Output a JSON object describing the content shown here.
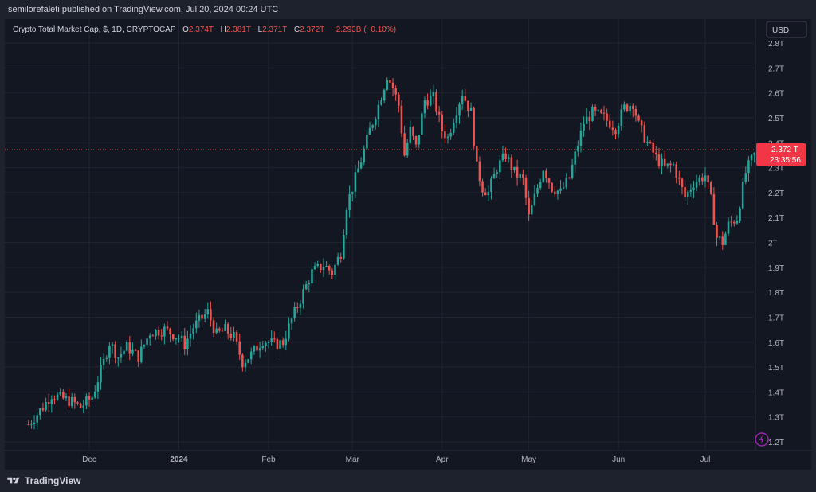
{
  "header": {
    "published": "semilorefaleti published on TradingView.com, Jul 20, 2024 00:24 UTC"
  },
  "legend": {
    "name": "Crypto Total Market Cap, $, 1D, CRYPTOCAP",
    "o_label": "O",
    "o_value": "2.374T",
    "h_label": "H",
    "h_value": "2.381T",
    "l_label": "L",
    "l_value": "2.371T",
    "c_label": "C",
    "c_value": "2.372T",
    "change": "−2.293B (−0.10%)"
  },
  "currency_button": "USD",
  "price_tag": {
    "price": "2.372 T",
    "countdown": "23:35:56"
  },
  "footer": {
    "brand": "TradingView"
  },
  "colors": {
    "up": "#26a69a",
    "down": "#ef5350",
    "bg": "#131722",
    "grid": "#1f2430",
    "text": "#d1d4dc"
  },
  "chart_data": {
    "type": "candlestick",
    "title": "Crypto Total Market Cap, $, 1D, CRYPTOCAP",
    "xlabel": "",
    "ylabel": "",
    "y_unit": "T",
    "y_ticks": [
      "1.2T",
      "1.3T",
      "1.4T",
      "1.5T",
      "1.6T",
      "1.7T",
      "1.8T",
      "1.9T",
      "2T",
      "2.1T",
      "2.2T",
      "2.3T",
      "2.4T",
      "2.5T",
      "2.6T",
      "2.7T",
      "2.8T"
    ],
    "y_tick_values": [
      1.2,
      1.3,
      1.4,
      1.5,
      1.6,
      1.7,
      1.8,
      1.9,
      2.0,
      2.1,
      2.2,
      2.3,
      2.4,
      2.5,
      2.6,
      2.7,
      2.8
    ],
    "x_ticks": [
      {
        "date": "2023-12-01",
        "label": "Dec",
        "bold": false
      },
      {
        "date": "2024-01-01",
        "label": "2024",
        "bold": true
      },
      {
        "date": "2024-02-01",
        "label": "Feb",
        "bold": false
      },
      {
        "date": "2024-03-01",
        "label": "Mar",
        "bold": false
      },
      {
        "date": "2024-04-01",
        "label": "Apr",
        "bold": false
      },
      {
        "date": "2024-05-01",
        "label": "May",
        "bold": false
      },
      {
        "date": "2024-06-01",
        "label": "Jun",
        "bold": false
      },
      {
        "date": "2024-07-01",
        "label": "Jul",
        "bold": false
      }
    ],
    "ylim": [
      1.2,
      2.8
    ],
    "last_price": 2.372,
    "close_trajectory": [
      {
        "date": "2023-11-10",
        "close": 1.27
      },
      {
        "date": "2023-11-15",
        "close": 1.34
      },
      {
        "date": "2023-11-18",
        "close": 1.39
      },
      {
        "date": "2023-11-25",
        "close": 1.36
      },
      {
        "date": "2023-11-28",
        "close": 1.34
      },
      {
        "date": "2023-12-02",
        "close": 1.38
      },
      {
        "date": "2023-12-06",
        "close": 1.52
      },
      {
        "date": "2023-12-08",
        "close": 1.6
      },
      {
        "date": "2023-12-11",
        "close": 1.54
      },
      {
        "date": "2023-12-14",
        "close": 1.58
      },
      {
        "date": "2023-12-18",
        "close": 1.54
      },
      {
        "date": "2023-12-22",
        "close": 1.64
      },
      {
        "date": "2023-12-27",
        "close": 1.65
      },
      {
        "date": "2024-01-01",
        "close": 1.62
      },
      {
        "date": "2024-01-03",
        "close": 1.59
      },
      {
        "date": "2024-01-06",
        "close": 1.66
      },
      {
        "date": "2024-01-11",
        "close": 1.72
      },
      {
        "date": "2024-01-14",
        "close": 1.63
      },
      {
        "date": "2024-01-17",
        "close": 1.65
      },
      {
        "date": "2024-01-20",
        "close": 1.62
      },
      {
        "date": "2024-01-23",
        "close": 1.52
      },
      {
        "date": "2024-01-26",
        "close": 1.55
      },
      {
        "date": "2024-01-30",
        "close": 1.61
      },
      {
        "date": "2024-02-03",
        "close": 1.59
      },
      {
        "date": "2024-02-06",
        "close": 1.6
      },
      {
        "date": "2024-02-09",
        "close": 1.69
      },
      {
        "date": "2024-02-13",
        "close": 1.8
      },
      {
        "date": "2024-02-16",
        "close": 1.88
      },
      {
        "date": "2024-02-20",
        "close": 1.91
      },
      {
        "date": "2024-02-23",
        "close": 1.88
      },
      {
        "date": "2024-02-26",
        "close": 1.96
      },
      {
        "date": "2024-02-28",
        "close": 2.15
      },
      {
        "date": "2024-03-01",
        "close": 2.22
      },
      {
        "date": "2024-03-04",
        "close": 2.33
      },
      {
        "date": "2024-03-07",
        "close": 2.45
      },
      {
        "date": "2024-03-10",
        "close": 2.55
      },
      {
        "date": "2024-03-13",
        "close": 2.67
      },
      {
        "date": "2024-03-15",
        "close": 2.62
      },
      {
        "date": "2024-03-17",
        "close": 2.55
      },
      {
        "date": "2024-03-19",
        "close": 2.35
      },
      {
        "date": "2024-03-21",
        "close": 2.45
      },
      {
        "date": "2024-03-23",
        "close": 2.38
      },
      {
        "date": "2024-03-26",
        "close": 2.57
      },
      {
        "date": "2024-03-29",
        "close": 2.58
      },
      {
        "date": "2024-04-01",
        "close": 2.45
      },
      {
        "date": "2024-04-03",
        "close": 2.42
      },
      {
        "date": "2024-04-05",
        "close": 2.5
      },
      {
        "date": "2024-04-08",
        "close": 2.6
      },
      {
        "date": "2024-04-11",
        "close": 2.52
      },
      {
        "date": "2024-04-13",
        "close": 2.3
      },
      {
        "date": "2024-04-15",
        "close": 2.22
      },
      {
        "date": "2024-04-17",
        "close": 2.2
      },
      {
        "date": "2024-04-20",
        "close": 2.3
      },
      {
        "date": "2024-04-23",
        "close": 2.35
      },
      {
        "date": "2024-04-26",
        "close": 2.28
      },
      {
        "date": "2024-04-29",
        "close": 2.25
      },
      {
        "date": "2024-05-01",
        "close": 2.1
      },
      {
        "date": "2024-05-03",
        "close": 2.18
      },
      {
        "date": "2024-05-06",
        "close": 2.3
      },
      {
        "date": "2024-05-09",
        "close": 2.22
      },
      {
        "date": "2024-05-12",
        "close": 2.2
      },
      {
        "date": "2024-05-15",
        "close": 2.26
      },
      {
        "date": "2024-05-17",
        "close": 2.35
      },
      {
        "date": "2024-05-20",
        "close": 2.48
      },
      {
        "date": "2024-05-23",
        "close": 2.52
      },
      {
        "date": "2024-05-27",
        "close": 2.5
      },
      {
        "date": "2024-05-31",
        "close": 2.46
      },
      {
        "date": "2024-06-03",
        "close": 2.54
      },
      {
        "date": "2024-06-06",
        "close": 2.56
      },
      {
        "date": "2024-06-08",
        "close": 2.47
      },
      {
        "date": "2024-06-11",
        "close": 2.4
      },
      {
        "date": "2024-06-14",
        "close": 2.34
      },
      {
        "date": "2024-06-17",
        "close": 2.3
      },
      {
        "date": "2024-06-20",
        "close": 2.31
      },
      {
        "date": "2024-06-24",
        "close": 2.18
      },
      {
        "date": "2024-06-27",
        "close": 2.24
      },
      {
        "date": "2024-07-01",
        "close": 2.27
      },
      {
        "date": "2024-07-03",
        "close": 2.17
      },
      {
        "date": "2024-07-05",
        "close": 2.02
      },
      {
        "date": "2024-07-07",
        "close": 2.0
      },
      {
        "date": "2024-07-09",
        "close": 2.07
      },
      {
        "date": "2024-07-12",
        "close": 2.1
      },
      {
        "date": "2024-07-15",
        "close": 2.28
      },
      {
        "date": "2024-07-17",
        "close": 2.33
      },
      {
        "date": "2024-07-19",
        "close": 2.372
      }
    ],
    "grid": true,
    "legend_position": "top-left"
  }
}
